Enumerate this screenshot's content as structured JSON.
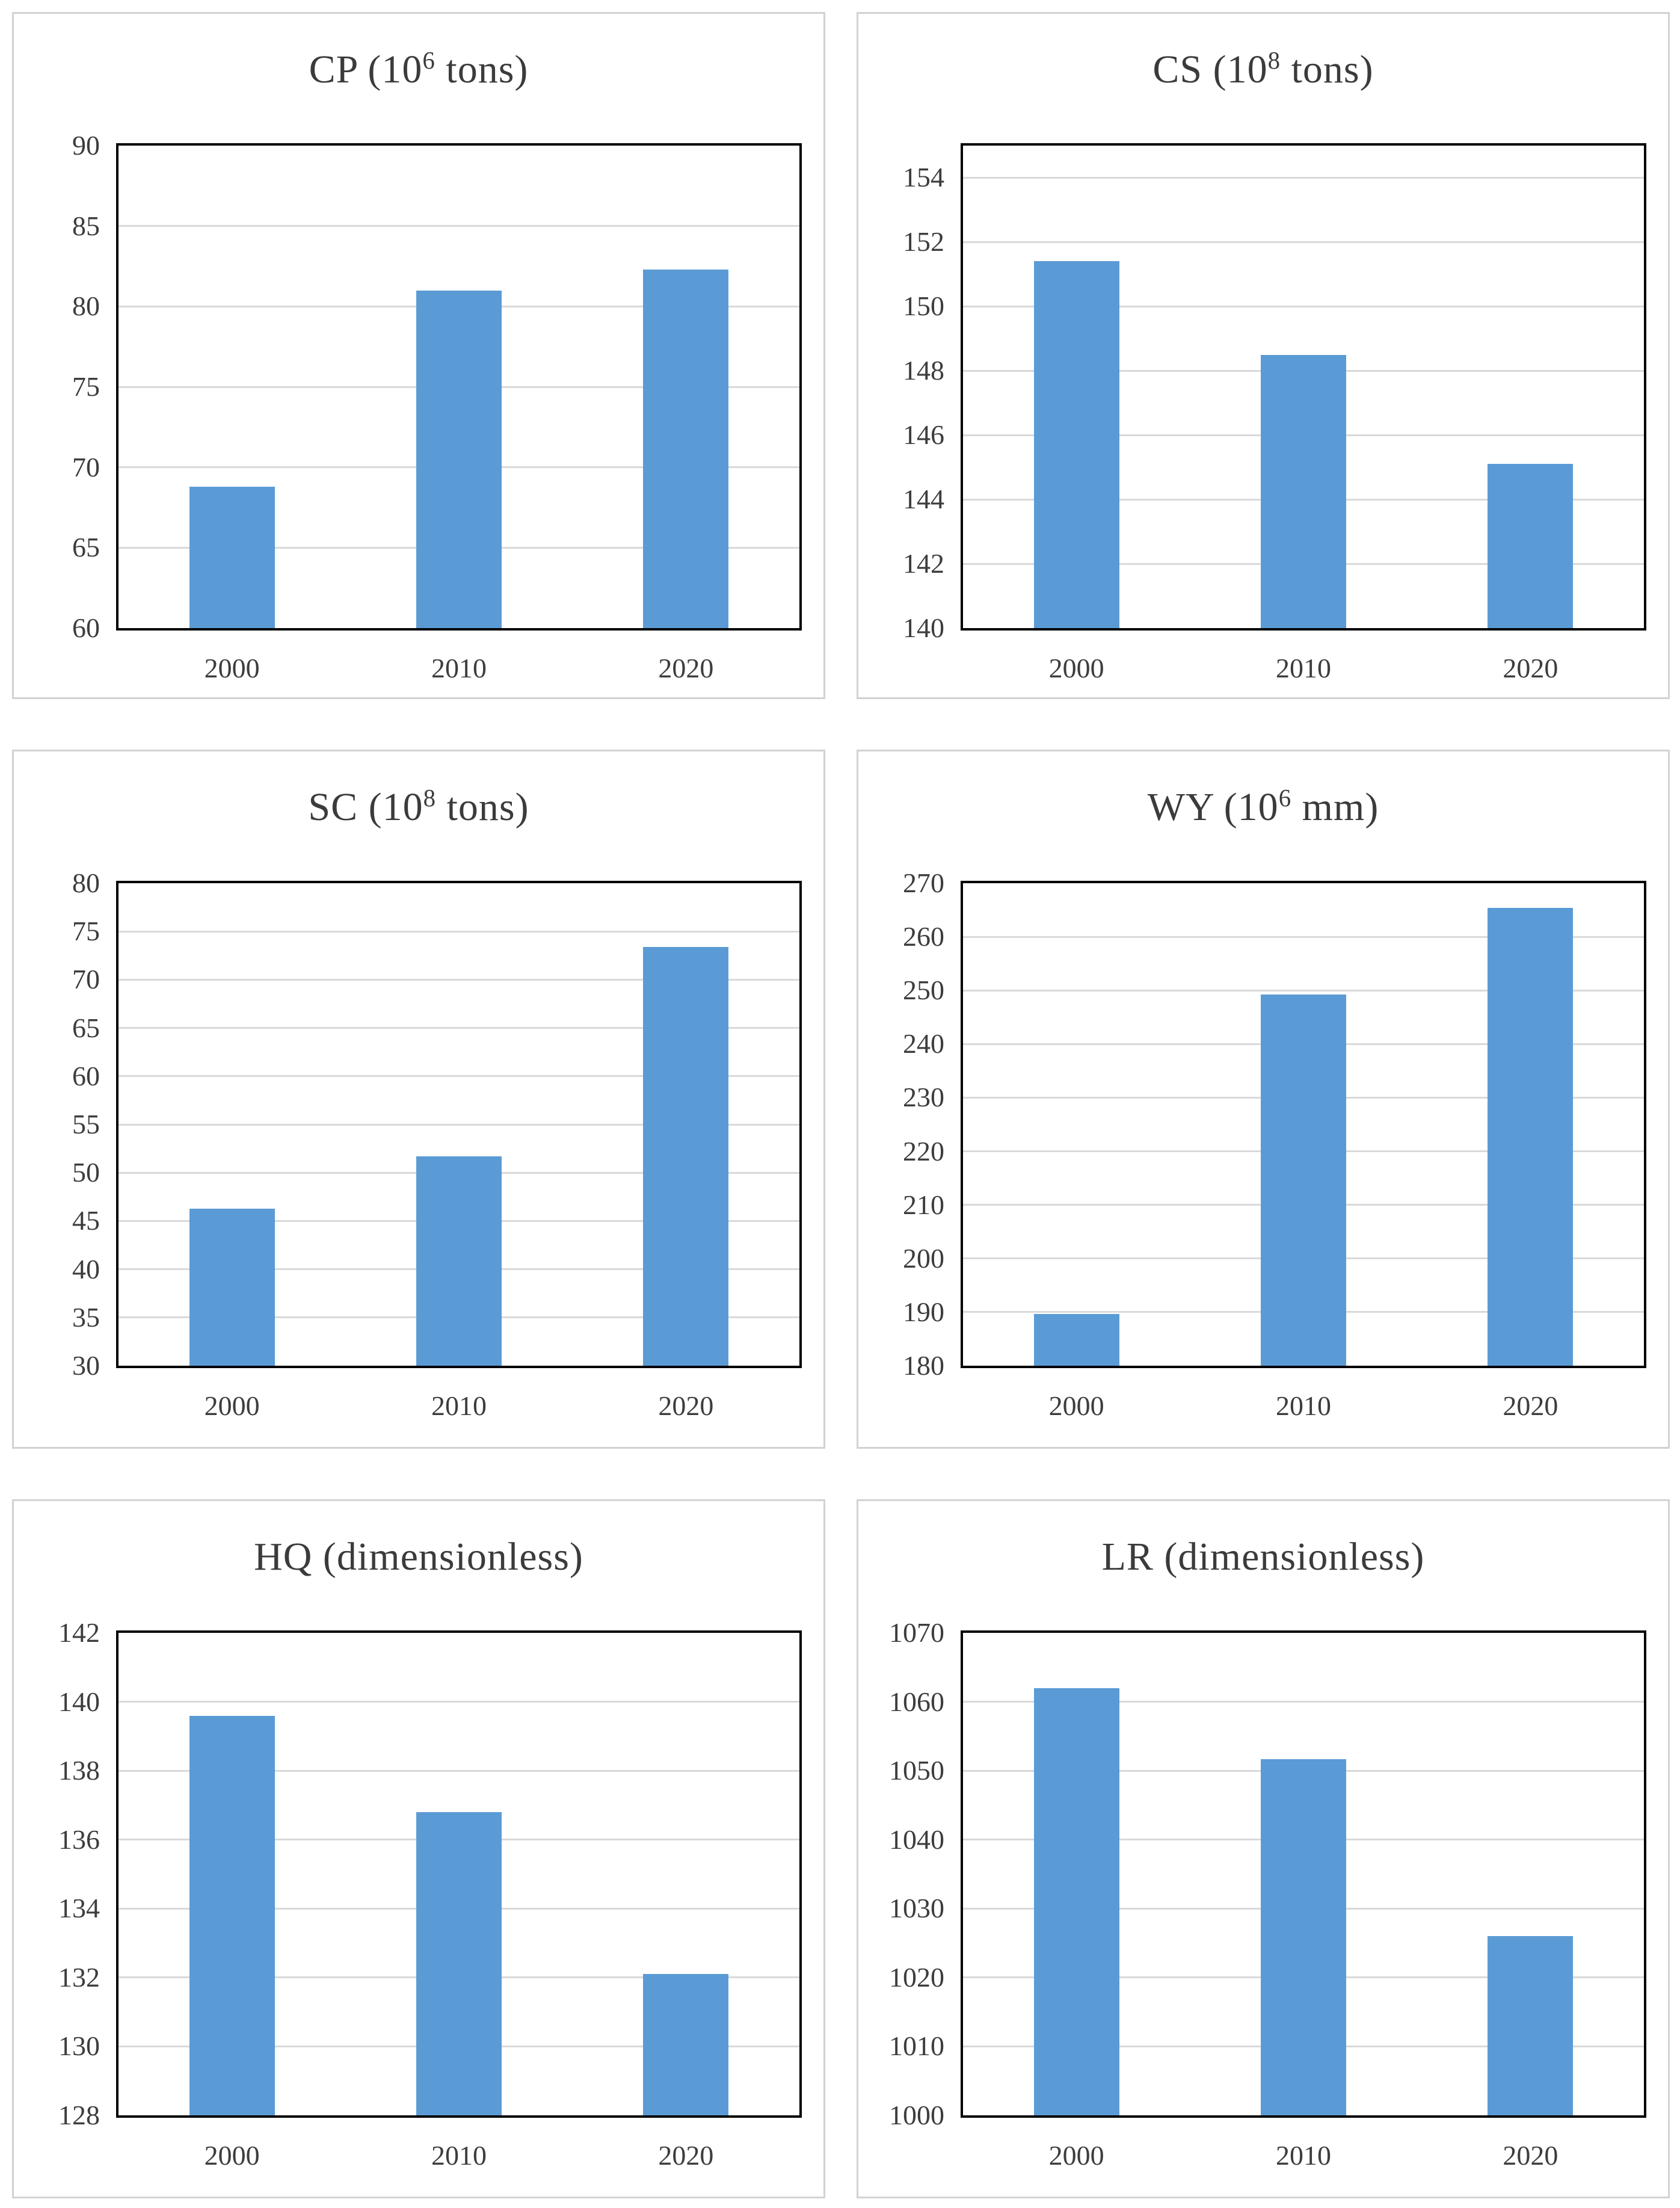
{
  "page": {
    "background": "#ffffff",
    "layout": "2x3-grid-of-bar-charts"
  },
  "style": {
    "bar_color": "#5b9bd5",
    "gridline_color": "#d9d9d9",
    "plot_border_color": "#000000",
    "panel_border_color": "#d2d2d2",
    "text_color": "#3d3d3d"
  },
  "chart_data": [
    {
      "type": "bar",
      "key": "CP",
      "title": "CP (10⁶ tons)",
      "title_parts": {
        "base": "CP (10",
        "sup": "6",
        "rest": " tons)"
      },
      "categories": [
        "2000",
        "2010",
        "2020"
      ],
      "values": [
        68.8,
        81.0,
        82.3
      ],
      "ylim": [
        60,
        90
      ],
      "yticks": [
        60,
        65,
        70,
        75,
        80,
        85,
        90
      ],
      "xlabel": "",
      "ylabel": "",
      "grid": true,
      "legend": "none"
    },
    {
      "type": "bar",
      "key": "CS",
      "title": "CS (10⁸ tons)",
      "title_parts": {
        "base": "CS (10",
        "sup": "8",
        "rest": " tons)"
      },
      "categories": [
        "2000",
        "2010",
        "2020"
      ],
      "values": [
        151.4,
        148.5,
        145.1
      ],
      "ylim": [
        140,
        155
      ],
      "yticks": [
        140,
        142,
        144,
        146,
        148,
        150,
        152,
        154
      ],
      "xlabel": "",
      "ylabel": "",
      "grid": true,
      "legend": "none"
    },
    {
      "type": "bar",
      "key": "SC",
      "title": "SC (10⁸ tons)",
      "title_parts": {
        "base": "SC (10",
        "sup": "8",
        "rest": " tons)"
      },
      "categories": [
        "2000",
        "2010",
        "2020"
      ],
      "values": [
        46.3,
        51.7,
        73.4
      ],
      "ylim": [
        30,
        80
      ],
      "yticks": [
        30,
        35,
        40,
        45,
        50,
        55,
        60,
        65,
        70,
        75,
        80
      ],
      "xlabel": "",
      "ylabel": "",
      "grid": true,
      "legend": "none"
    },
    {
      "type": "bar",
      "key": "WY",
      "title": "WY (10⁶ mm)",
      "title_parts": {
        "base": "WY (10",
        "sup": "6",
        "rest": " mm)"
      },
      "categories": [
        "2000",
        "2010",
        "2020"
      ],
      "values": [
        189.7,
        249.2,
        265.4
      ],
      "ylim": [
        180,
        270
      ],
      "yticks": [
        180,
        190,
        200,
        210,
        220,
        230,
        240,
        250,
        260,
        270
      ],
      "xlabel": "",
      "ylabel": "",
      "grid": true,
      "legend": "none"
    },
    {
      "type": "bar",
      "key": "HQ",
      "title": "HQ (dimensionless)",
      "title_parts": {
        "base": "HQ (dimensionless)",
        "sup": "",
        "rest": ""
      },
      "categories": [
        "2000",
        "2010",
        "2020"
      ],
      "values": [
        139.6,
        136.8,
        132.1
      ],
      "ylim": [
        128,
        142
      ],
      "yticks": [
        128,
        130,
        132,
        134,
        136,
        138,
        140,
        142
      ],
      "xlabel": "",
      "ylabel": "",
      "grid": true,
      "legend": "none"
    },
    {
      "type": "bar",
      "key": "LR",
      "title": "LR (dimensionless)",
      "title_parts": {
        "base": "LR (dimensionless)",
        "sup": "",
        "rest": ""
      },
      "categories": [
        "2000",
        "2010",
        "2020"
      ],
      "values": [
        1062,
        1051.7,
        1026
      ],
      "ylim": [
        1000,
        1070
      ],
      "yticks": [
        1000,
        1010,
        1020,
        1030,
        1040,
        1050,
        1060,
        1070
      ],
      "xlabel": "",
      "ylabel": "",
      "grid": true,
      "legend": "none"
    }
  ]
}
